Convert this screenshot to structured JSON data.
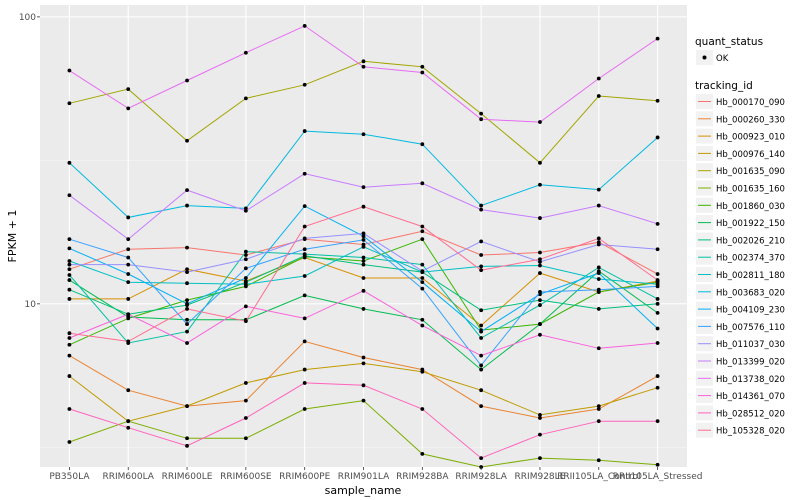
{
  "chart_data": {
    "type": "line",
    "xlabel": "sample_name",
    "ylabel": "FPKM + 1",
    "y_scale": "log10",
    "ylim": [
      2.7,
      110
    ],
    "y_ticks": [
      {
        "value": 10,
        "label": "10"
      },
      {
        "value": 100,
        "label": "100"
      }
    ],
    "grid": true,
    "legend_position": "right",
    "categories": [
      "PB350LA",
      "RRIM600LA",
      "RRIM600LE",
      "RRIM600SE",
      "RRIM600PE",
      "RRIM901LA",
      "RRIM928BA",
      "RRIM928LA",
      "RRIM928LE",
      "RRII105LA_Control",
      "RRII105LA_Stressed"
    ],
    "quant_status": {
      "title": "quant_status",
      "entries": [
        "OK"
      ]
    },
    "tracking_id_title": "tracking_id",
    "series": [
      {
        "name": "Hb_000170_090",
        "color": "#F8766D",
        "values": [
          13.2,
          15.5,
          15.7,
          14.8,
          16.8,
          16.1,
          17.9,
          14.8,
          15.1,
          16.4,
          12.7
        ]
      },
      {
        "name": "Hb_000260_330",
        "color": "#EA8331",
        "values": [
          6.6,
          5.0,
          4.4,
          4.6,
          7.4,
          6.5,
          5.9,
          4.4,
          4.0,
          4.3,
          5.6
        ]
      },
      {
        "name": "Hb_000923_010",
        "color": "#D89000",
        "values": [
          10.4,
          10.4,
          13.2,
          12.0,
          14.5,
          12.3,
          12.3,
          8.4,
          12.8,
          11.0,
          12.0
        ]
      },
      {
        "name": "Hb_000976_140",
        "color": "#C09B00",
        "values": [
          5.6,
          3.9,
          4.4,
          5.3,
          5.9,
          6.2,
          5.8,
          5.0,
          4.1,
          4.4,
          5.1
        ]
      },
      {
        "name": "Hb_001635_090",
        "color": "#A3A500",
        "values": [
          50,
          56,
          37,
          52,
          58,
          70,
          67,
          46,
          31,
          53,
          51
        ]
      },
      {
        "name": "Hb_001635_160",
        "color": "#7CAE00",
        "values": [
          3.3,
          3.9,
          3.4,
          3.4,
          4.3,
          4.6,
          3.0,
          2.7,
          2.9,
          2.85,
          2.75
        ]
      },
      {
        "name": "Hb_001860_030",
        "color": "#39B600",
        "values": [
          7.2,
          8.9,
          10.3,
          11.5,
          14.6,
          14.1,
          16.8,
          8.1,
          8.5,
          11.0,
          11.9
        ]
      },
      {
        "name": "Hb_001922_150",
        "color": "#00BB4E",
        "values": [
          12.1,
          9.0,
          8.8,
          8.8,
          10.7,
          9.6,
          8.8,
          5.9,
          8.5,
          13.0,
          9.3
        ]
      },
      {
        "name": "Hb_002026_210",
        "color": "#00BF7D",
        "values": [
          11.2,
          9.2,
          9.9,
          11.9,
          14.7,
          13.7,
          12.9,
          9.5,
          10.3,
          9.6,
          10.0
        ]
      },
      {
        "name": "Hb_002374_370",
        "color": "#00C1A3",
        "values": [
          12.6,
          7.3,
          8.0,
          15.2,
          14.9,
          14.5,
          13.7,
          7.6,
          9.9,
          13.4,
          10.4
        ]
      },
      {
        "name": "Hb_002811_180",
        "color": "#00BFC4",
        "values": [
          14.1,
          11.9,
          11.8,
          11.7,
          12.5,
          15.8,
          12.9,
          13.5,
          13.6,
          12.2,
          11.7
        ]
      },
      {
        "name": "Hb_003683_020",
        "color": "#00BAE0",
        "values": [
          31,
          20,
          22,
          21.5,
          40,
          39,
          36,
          22,
          26,
          25,
          38
        ]
      },
      {
        "name": "Hb_004109_230",
        "color": "#00B0F6",
        "values": [
          15.6,
          12.7,
          10.0,
          12.3,
          21.9,
          17.2,
          11.9,
          8.0,
          10.8,
          12.8,
          8.2
        ]
      },
      {
        "name": "Hb_007576_110",
        "color": "#35A2FF",
        "values": [
          16.8,
          14.5,
          8.5,
          13.3,
          15.5,
          16.7,
          11.3,
          6.1,
          11.0,
          11.2,
          11.5
        ]
      },
      {
        "name": "Hb_011037_030",
        "color": "#9590FF",
        "values": [
          13.7,
          13.7,
          12.9,
          14.3,
          16.9,
          17.6,
          13.0,
          16.5,
          14.0,
          16.1,
          15.5
        ]
      },
      {
        "name": "Hb_013399_020",
        "color": "#C77CFF",
        "values": [
          23.9,
          16.8,
          24.9,
          21.1,
          28.4,
          25.5,
          26.3,
          21.3,
          19.9,
          22.0,
          19.0
        ]
      },
      {
        "name": "Hb_013738_020",
        "color": "#E76BF3",
        "values": [
          65,
          48,
          60,
          75,
          93,
          67,
          64,
          44,
          43,
          61,
          84
        ]
      },
      {
        "name": "Hb_014361_070",
        "color": "#FA62DB",
        "values": [
          7.6,
          9.2,
          7.3,
          9.8,
          8.9,
          11.1,
          8.4,
          6.6,
          7.8,
          7.0,
          7.3
        ]
      },
      {
        "name": "Hb_028512_020",
        "color": "#FF62BC",
        "values": [
          4.3,
          3.7,
          3.2,
          4.0,
          5.3,
          5.2,
          4.3,
          2.9,
          3.5,
          3.9,
          3.9
        ]
      },
      {
        "name": "Hb_105328_020",
        "color": "#FF6C91",
        "values": [
          7.9,
          7.4,
          9.6,
          8.7,
          18.6,
          21.8,
          18.6,
          13.1,
          14.3,
          16.9,
          12.1
        ]
      }
    ]
  }
}
